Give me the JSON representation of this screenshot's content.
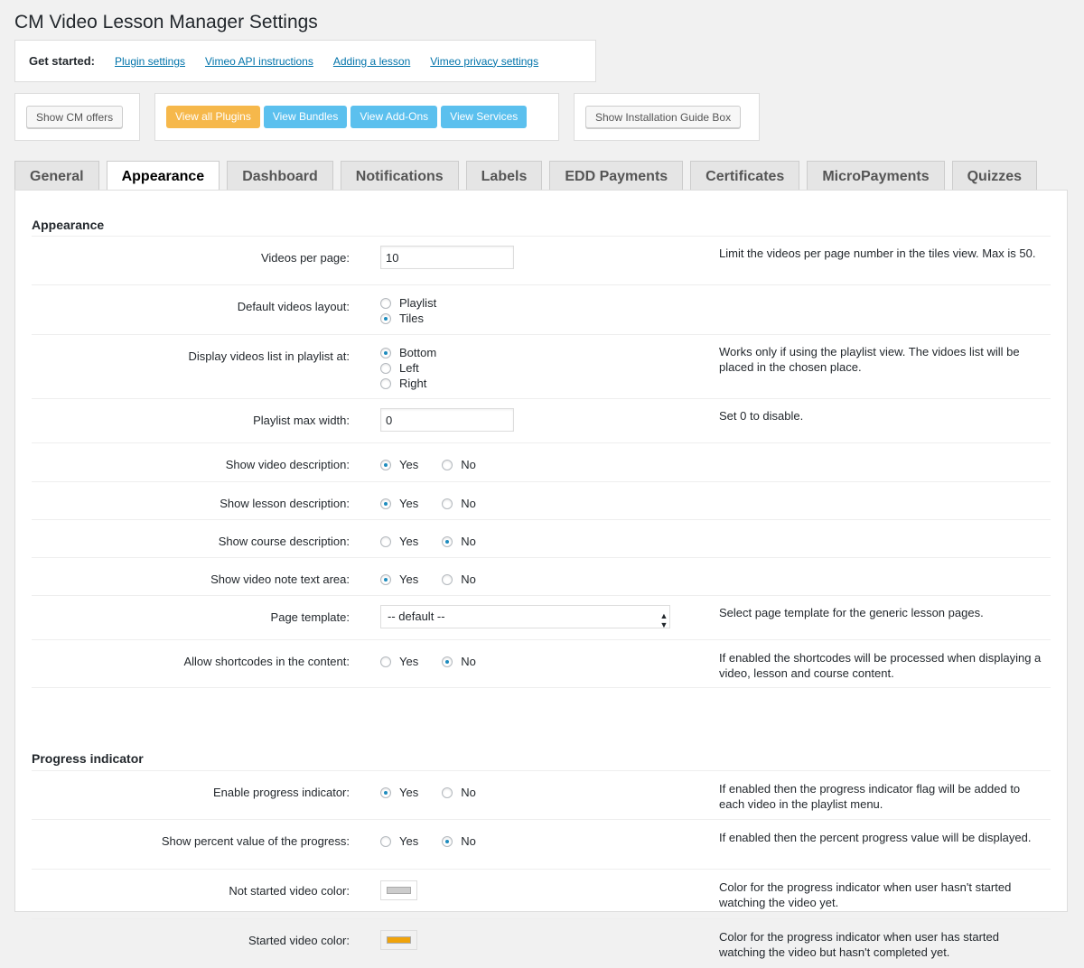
{
  "title": "CM Video Lesson Manager Settings",
  "get_started": {
    "label": "Get started:",
    "links": [
      "Plugin settings",
      "Vimeo API instructions",
      "Adding a lesson",
      "Vimeo privacy settings"
    ]
  },
  "buttons": {
    "show_offers": "Show CM offers",
    "view_all": "View all Plugins",
    "bundles": "View Bundles",
    "addons": "View Add-Ons",
    "services": "View Services",
    "install_guide": "Show Installation Guide Box"
  },
  "colors": {
    "orange": "#f6b84b",
    "blue": "#5bc0ee",
    "link": "#0073aa",
    "radio": "#1e8cbe"
  },
  "tabs": [
    {
      "label": "General"
    },
    {
      "label": "Appearance",
      "active": true
    },
    {
      "label": "Dashboard"
    },
    {
      "label": "Notifications"
    },
    {
      "label": "Labels"
    },
    {
      "label": "EDD Payments"
    },
    {
      "label": "Certificates"
    },
    {
      "label": "MicroPayments"
    },
    {
      "label": "Quizzes"
    }
  ],
  "sections": [
    {
      "title": "Appearance",
      "rows": [
        {
          "label": "Videos per page:",
          "type": "text",
          "value": "10",
          "desc": "Limit the videos per page number in the tiles view. Max is 50."
        },
        {
          "label": "Default videos layout:",
          "type": "radio-v",
          "options": [
            "Playlist",
            "Tiles"
          ],
          "selected": "Tiles",
          "desc": ""
        },
        {
          "label": "Display videos list in playlist at:",
          "type": "radio-v",
          "options": [
            "Bottom",
            "Left",
            "Right"
          ],
          "selected": "Bottom",
          "desc": "Works only if using the playlist view. The vidoes list will be placed in the chosen place."
        },
        {
          "label": "Playlist max width:",
          "type": "text",
          "value": "0",
          "desc": "Set 0 to disable."
        },
        {
          "label": "Show video description:",
          "type": "radio-h",
          "options": [
            "Yes",
            "No"
          ],
          "selected": "Yes",
          "desc": ""
        },
        {
          "label": "Show lesson description:",
          "type": "radio-h",
          "options": [
            "Yes",
            "No"
          ],
          "selected": "Yes",
          "desc": ""
        },
        {
          "label": "Show course description:",
          "type": "radio-h",
          "options": [
            "Yes",
            "No"
          ],
          "selected": "No",
          "desc": ""
        },
        {
          "label": "Show video note text area:",
          "type": "radio-h",
          "options": [
            "Yes",
            "No"
          ],
          "selected": "Yes",
          "desc": ""
        },
        {
          "label": "Page template:",
          "type": "select",
          "value": "-- default --",
          "desc": "Select page template for the generic lesson pages."
        },
        {
          "label": "Allow shortcodes in the content:",
          "type": "radio-h",
          "options": [
            "Yes",
            "No"
          ],
          "selected": "No",
          "desc": "If enabled the shortcodes will be processed when displaying a video, lesson and course content."
        }
      ]
    },
    {
      "title": "Progress indicator",
      "rows": [
        {
          "label": "Enable progress indicator:",
          "type": "radio-h",
          "options": [
            "Yes",
            "No"
          ],
          "selected": "Yes",
          "desc": "If enabled then the progress indicator flag will be added to each video in the playlist menu."
        },
        {
          "label": "Show percent value of the progress:",
          "type": "radio-h",
          "options": [
            "Yes",
            "No"
          ],
          "selected": "No",
          "desc": "If enabled then the percent progress value will be displayed."
        },
        {
          "label": "Not started video color:",
          "type": "color",
          "value": "#cccccc",
          "desc": "Color for the progress indicator when user hasn't started watching the video yet."
        },
        {
          "label": "Started video color:",
          "type": "color",
          "value": "#f0a30a",
          "desc": "Color for the progress indicator when user has started watching the video but hasn't completed yet."
        }
      ]
    }
  ]
}
